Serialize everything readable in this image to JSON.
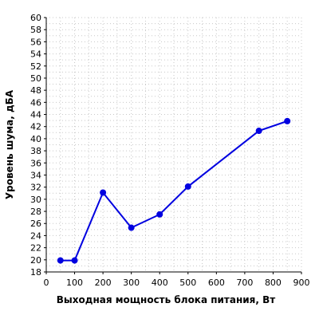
{
  "chart_data": {
    "type": "line",
    "xlabel": "Выходная мощность блока питания, Вт",
    "ylabel": "Уровень шума, дБА",
    "xlim": [
      0,
      900
    ],
    "ylim": [
      18,
      60
    ],
    "x_ticks": [
      0,
      100,
      200,
      300,
      400,
      500,
      600,
      700,
      800,
      900
    ],
    "y_ticks": [
      18,
      20,
      22,
      24,
      26,
      28,
      30,
      32,
      34,
      36,
      38,
      40,
      42,
      44,
      46,
      48,
      50,
      52,
      54,
      56,
      58,
      60
    ],
    "grid": true,
    "series": [
      {
        "x": [
          50,
          100,
          200,
          300,
          400,
          500,
          750,
          850
        ],
        "y": [
          19.9,
          19.9,
          31.1,
          25.3,
          27.5,
          32.1,
          41.3,
          42.9
        ],
        "color": "#0000e0"
      }
    ]
  }
}
